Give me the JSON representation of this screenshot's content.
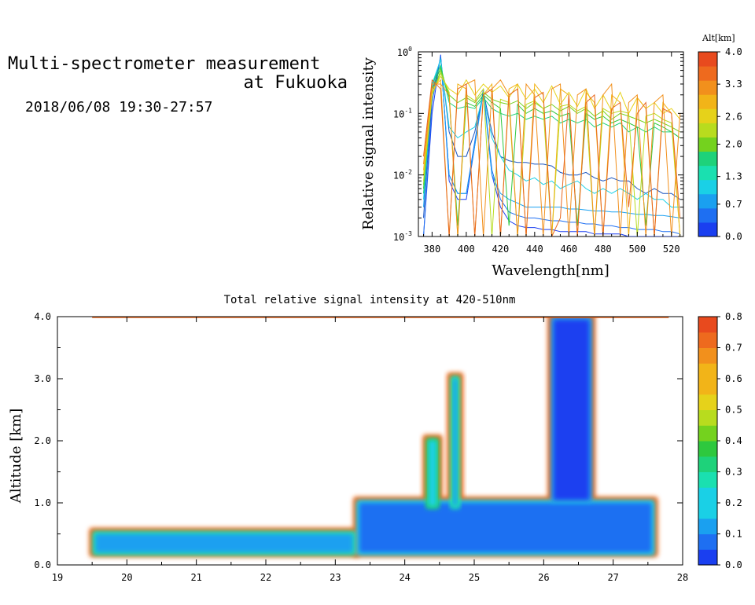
{
  "header": {
    "title_line1": "Multi-spectrometer measurement",
    "title_line2": "at Fukuoka",
    "date_range": "2018/06/08 19:30-27:57"
  },
  "colors": {
    "ramp": [
      "#1a3ff0",
      "#1e6ff2",
      "#1aa0f0",
      "#1ad0e6",
      "#1ae0b0",
      "#1ed27a",
      "#2ec83e",
      "#74d21e",
      "#b8dc1e",
      "#e6d21a",
      "#f2b418",
      "#f2901c",
      "#ee6a1e",
      "#e84a1e"
    ]
  },
  "chart_data": [
    {
      "type": "line",
      "title": "",
      "xlabel": "Wavelength[nm]",
      "ylabel": "Relative signal intensity",
      "xlim": [
        372,
        527
      ],
      "ylim": [
        0.001,
        1
      ],
      "yscale": "log",
      "x_ticks": [
        380,
        400,
        420,
        440,
        460,
        480,
        500,
        520
      ],
      "x_tick_labels": [
        "380",
        "400",
        "420",
        "440",
        "460",
        "480",
        "500",
        "520"
      ],
      "y_ticks": [
        0.001,
        0.01,
        0.1,
        1
      ],
      "y_tick_labels": [
        {
          "base": "10",
          "exp": "-3"
        },
        {
          "base": "10",
          "exp": "-2"
        },
        {
          "base": "10",
          "exp": "-1"
        },
        {
          "base": "10",
          "exp": "0"
        }
      ],
      "x": [
        375,
        380,
        385,
        390,
        395,
        400,
        405,
        410,
        415,
        420,
        425,
        430,
        435,
        440,
        445,
        450,
        455,
        460,
        465,
        470,
        475,
        480,
        485,
        490,
        495,
        500,
        505,
        510,
        515,
        520,
        525
      ],
      "colorbar": {
        "title": "Alt[km]",
        "tick_values": [
          0.0,
          0.7,
          1.3,
          2.0,
          2.6,
          3.3,
          4.0
        ],
        "tick_labels": [
          "0.0",
          "0.7",
          "1.3",
          "2.0",
          "2.6",
          "3.3",
          "4.0"
        ],
        "range": [
          0,
          4
        ],
        "grid": false
      },
      "series": [
        {
          "altitude": 0.1,
          "color": "#1a3ff0",
          "values": [
            0.001,
            0.1,
            0.9,
            0.008,
            0.004,
            0.004,
            0.03,
            0.25,
            0.01,
            0.003,
            0.0018,
            0.0015,
            0.0014,
            0.0014,
            0.0013,
            0.0013,
            0.0012,
            0.0012,
            0.0012,
            0.0012,
            0.0011,
            0.0011,
            0.0011,
            0.0011,
            0.001,
            0.001,
            0.001,
            0.001,
            0.001,
            0.001,
            0.001
          ]
        },
        {
          "altitude": 0.3,
          "color": "#1e6ff2",
          "values": [
            0.001,
            0.15,
            0.85,
            0.01,
            0.005,
            0.005,
            0.035,
            0.24,
            0.012,
            0.004,
            0.0025,
            0.0022,
            0.002,
            0.002,
            0.0019,
            0.0018,
            0.0018,
            0.0017,
            0.0017,
            0.0016,
            0.0016,
            0.0015,
            0.0015,
            0.0014,
            0.0014,
            0.0013,
            0.0013,
            0.0013,
            0.0012,
            0.0012,
            0.0011
          ]
        },
        {
          "altitude": 0.6,
          "color": "#1a55c0",
          "values": [
            0.002,
            0.2,
            0.8,
            0.05,
            0.02,
            0.02,
            0.05,
            0.22,
            0.05,
            0.02,
            0.017,
            0.016,
            0.016,
            0.015,
            0.015,
            0.014,
            0.011,
            0.01,
            0.01,
            0.011,
            0.009,
            0.008,
            0.009,
            0.008,
            0.008,
            0.006,
            0.005,
            0.006,
            0.005,
            0.005,
            0.004
          ]
        },
        {
          "altitude": 1.0,
          "color": "#1aa0f0",
          "values": [
            0.003,
            0.25,
            0.8,
            0.01,
            0.005,
            0.005,
            0.03,
            0.22,
            0.01,
            0.005,
            0.004,
            0.0035,
            0.003,
            0.003,
            0.003,
            0.003,
            0.003,
            0.0028,
            0.0028,
            0.0027,
            0.0026,
            0.0026,
            0.0025,
            0.0025,
            0.0024,
            0.0023,
            0.0023,
            0.0022,
            0.0022,
            0.0021,
            0.002
          ]
        },
        {
          "altitude": 1.3,
          "color": "#1ad0e6",
          "values": [
            0.004,
            0.3,
            0.75,
            0.06,
            0.04,
            0.05,
            0.06,
            0.2,
            0.04,
            0.02,
            0.012,
            0.01,
            0.008,
            0.009,
            0.007,
            0.008,
            0.006,
            0.007,
            0.008,
            0.006,
            0.005,
            0.006,
            0.005,
            0.006,
            0.005,
            0.004,
            0.005,
            0.004,
            0.004,
            0.003,
            0.003
          ]
        },
        {
          "altitude": 1.8,
          "color": "#1ed27a",
          "values": [
            0.005,
            0.3,
            0.6,
            0.15,
            0.12,
            0.13,
            0.12,
            0.18,
            0.12,
            0.1,
            0.09,
            0.1,
            0.08,
            0.09,
            0.08,
            0.09,
            0.07,
            0.08,
            0.07,
            0.08,
            0.06,
            0.07,
            0.06,
            0.07,
            0.05,
            0.06,
            0.05,
            0.06,
            0.05,
            0.05,
            0.04
          ]
        },
        {
          "altitude": 2.1,
          "color": "#2ec83e",
          "values": [
            0.006,
            0.25,
            0.55,
            0.18,
            0.0015,
            0.15,
            0.13,
            0.2,
            0.15,
            0.12,
            0.0015,
            0.14,
            0.1,
            0.12,
            0.1,
            0.11,
            0.09,
            0.1,
            0.0015,
            0.1,
            0.08,
            0.09,
            0.07,
            0.08,
            0.07,
            0.06,
            0.0015,
            0.07,
            0.06,
            0.05,
            0.04
          ]
        },
        {
          "altitude": 2.5,
          "color": "#74d21e",
          "values": [
            0.007,
            0.2,
            0.5,
            0.2,
            0.15,
            0.18,
            0.15,
            0.22,
            0.17,
            0.15,
            0.14,
            0.16,
            0.12,
            0.15,
            0.12,
            0.14,
            0.11,
            0.13,
            0.1,
            0.12,
            0.09,
            0.11,
            0.08,
            0.1,
            0.09,
            0.08,
            0.07,
            0.08,
            0.07,
            0.06,
            0.05
          ]
        },
        {
          "altitude": 2.8,
          "color": "#b8dc1e",
          "values": [
            0.008,
            0.2,
            0.45,
            0.22,
            0.001,
            0.2,
            0.16,
            0.25,
            0.001,
            0.17,
            0.15,
            0.001,
            0.14,
            0.16,
            0.12,
            0.001,
            0.13,
            0.14,
            0.11,
            0.13,
            0.001,
            0.12,
            0.1,
            0.11,
            0.1,
            0.001,
            0.09,
            0.1,
            0.08,
            0.07,
            0.001
          ]
        },
        {
          "altitude": 3.1,
          "color": "#e6d21a",
          "values": [
            0.01,
            0.22,
            0.4,
            0.25,
            0.2,
            0.35,
            0.2,
            0.3,
            0.22,
            0.28,
            0.18,
            0.3,
            0.17,
            0.25,
            0.15,
            0.28,
            0.14,
            0.22,
            0.13,
            0.25,
            0.12,
            0.2,
            0.11,
            0.22,
            0.1,
            0.18,
            0.12,
            0.15,
            0.1,
            0.12,
            0.08
          ]
        },
        {
          "altitude": 3.4,
          "color": "#f2b418",
          "values": [
            0.012,
            0.25,
            0.35,
            0.001,
            0.3,
            0.25,
            0.001,
            0.2,
            0.3,
            0.001,
            0.25,
            0.3,
            0.001,
            0.3,
            0.2,
            0.001,
            0.25,
            0.2,
            0.001,
            0.22,
            0.15,
            0.001,
            0.2,
            0.15,
            0.001,
            0.18,
            0.12,
            0.001,
            0.15,
            0.1,
            0.001
          ]
        },
        {
          "altitude": 3.7,
          "color": "#f2901c",
          "values": [
            0.015,
            0.3,
            0.3,
            0.2,
            0.001,
            0.3,
            0.35,
            0.001,
            0.25,
            0.35,
            0.2,
            0.001,
            0.3,
            0.2,
            0.001,
            0.25,
            0.3,
            0.001,
            0.2,
            0.25,
            0.001,
            0.2,
            0.3,
            0.001,
            0.15,
            0.2,
            0.001,
            0.15,
            0.2,
            0.001,
            0.1
          ]
        },
        {
          "altitude": 3.9,
          "color": "#e8671e",
          "values": [
            0.02,
            0.35,
            0.25,
            0.001,
            0.25,
            0.3,
            0.001,
            0.2,
            0.25,
            0.001,
            0.2,
            0.25,
            0.001,
            0.18,
            0.22,
            0.001,
            0.002,
            0.2,
            0.001,
            0.15,
            0.2,
            0.001,
            0.12,
            0.15,
            0.003,
            0.1,
            0.15,
            0.001,
            0.12,
            0.1,
            0.002
          ]
        }
      ]
    },
    {
      "type": "heatmap",
      "title": "Total relative signal intensity at 420-510nm",
      "xlabel": "",
      "ylabel": "Altitude [km]",
      "xlim": [
        19,
        28
      ],
      "ylim": [
        0,
        4
      ],
      "x_ticks": [
        19,
        20,
        21,
        22,
        23,
        24,
        25,
        26,
        27,
        28
      ],
      "x_tick_labels": [
        "19",
        "20",
        "21",
        "22",
        "23",
        "24",
        "25",
        "26",
        "27",
        "28"
      ],
      "y_ticks": [
        0,
        1,
        2,
        3,
        4
      ],
      "y_tick_labels": [
        "0.0",
        "1.0",
        "2.0",
        "3.0",
        "4.0"
      ],
      "colorbar": {
        "tick_values": [
          0.0,
          0.1,
          0.2,
          0.3,
          0.4,
          0.5,
          0.6,
          0.7,
          0.8
        ],
        "tick_labels": [
          "0.0",
          "0.1",
          "0.2",
          "0.3",
          "0.4",
          "0.5",
          "0.6",
          "0.7",
          "0.8"
        ],
        "range": [
          0,
          0.8
        ]
      },
      "regions": [
        {
          "name": "boundary-layer",
          "x_range": [
            19.5,
            23.3
          ],
          "y_range": [
            0.15,
            0.55
          ],
          "value": 0.15,
          "edge_value": 0.7
        },
        {
          "name": "lofted-layer",
          "x_range": [
            23.3,
            27.6
          ],
          "y_range": [
            0.15,
            1.05
          ],
          "value": 0.08,
          "edge_value": 0.7
        },
        {
          "name": "plume-24.4",
          "x_range": [
            24.3,
            24.5
          ],
          "y_range": [
            0.9,
            2.05
          ],
          "value": 0.2,
          "edge_value": 0.7
        },
        {
          "name": "plume-24.7",
          "x_range": [
            24.65,
            24.8
          ],
          "y_range": [
            0.9,
            3.05
          ],
          "value": 0.12,
          "edge_value": 0.7
        },
        {
          "name": "cloud-26.4",
          "x_range": [
            26.1,
            26.7
          ],
          "y_range": [
            1.0,
            4.0
          ],
          "value": 0.05,
          "edge_value": 0.7
        }
      ]
    }
  ]
}
